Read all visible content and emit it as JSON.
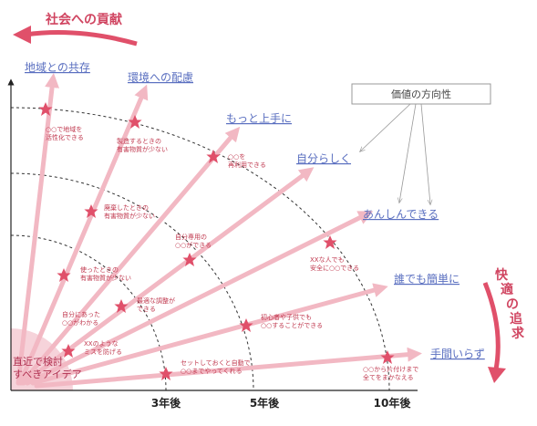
{
  "title_top": "社会への貢献",
  "title_right": "快適の追求",
  "legend_box": "価値の方向性",
  "origin_label_line1": "直近で検討",
  "origin_label_line2": "すべきアイデア",
  "x_ticks": [
    "3年後",
    "5年後",
    "10年後"
  ],
  "directions": [
    "地域との共存",
    "環境への配慮",
    "もっと上手に",
    "自分らしく",
    "あんしんできる",
    "誰でも簡単に",
    "手間いらず"
  ],
  "annotations": [
    {
      "line1": "○○で地域を",
      "line2": "活性化できる"
    },
    {
      "line1": "製造するときの",
      "line2": "有害物質が少ない"
    },
    {
      "line1": "○○を",
      "line2": "再利用できる"
    },
    {
      "line1": "廃棄したときの",
      "line2": "有害物質が少ない"
    },
    {
      "line1": "自分専用の",
      "line2": "○○ができる"
    },
    {
      "line1": "XXな人でも",
      "line2": "安全に○○できる"
    },
    {
      "line1": "使ったときの",
      "line2": "有害物質が少ない"
    },
    {
      "line1": "最適な調整が",
      "line2": "できる"
    },
    {
      "line1": "自分にあった",
      "line2": "○○がわかる"
    },
    {
      "line1": "初心者や子供でも",
      "line2": "○○することができる"
    },
    {
      "line1": "XXのような",
      "line2": "ミスを防げる"
    },
    {
      "line1": "セットしておくと自動で",
      "line2": "○○までやってくれる"
    },
    {
      "line1": "○○から片付けまで",
      "line2": "全てをまかなえる"
    }
  ],
  "colors": {
    "accent": "#e0506a",
    "arrow": "#f2b8c3",
    "star": "#e0506a",
    "label": "#5a6fc0",
    "origin_fill": "#f6d3da"
  }
}
